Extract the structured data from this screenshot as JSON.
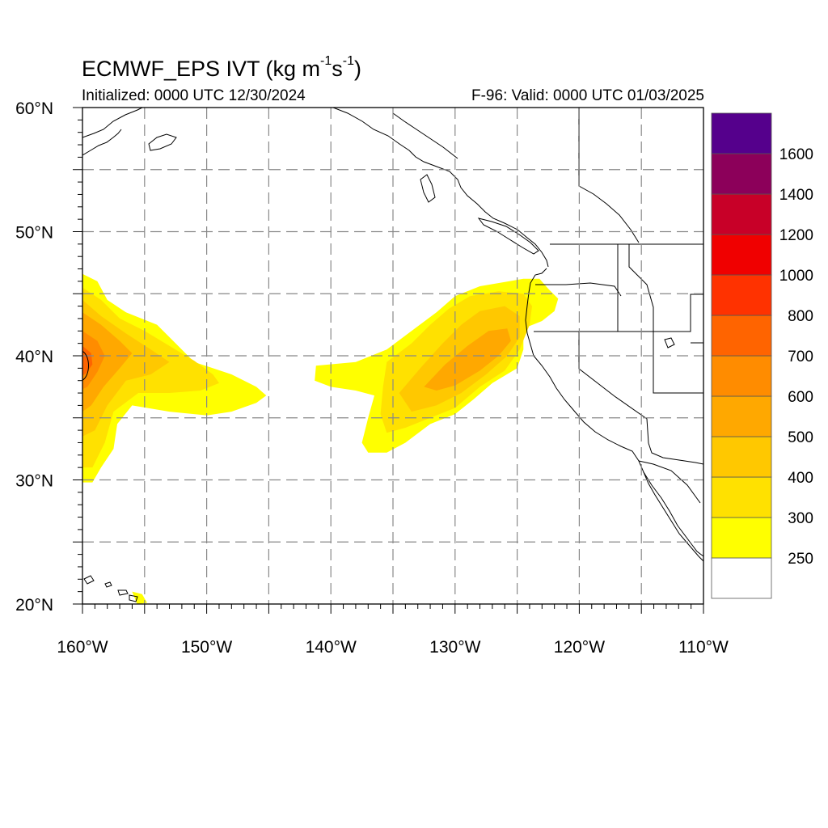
{
  "title": {
    "main": "ECMWF_EPS IVT (kg m",
    "sup1": "-1",
    "mid": "s",
    "sup2": "-1",
    "end": ")",
    "initialized": "Initialized: 0000 UTC 12/30/2024",
    "valid": "F-96: Valid: 0000 UTC 01/03/2025"
  },
  "map": {
    "lon_range": [
      -160,
      -110
    ],
    "lat_range": [
      20,
      60
    ],
    "grid_interval_deg": 5,
    "grid_style": "dashed",
    "lon_tick_labels": [
      {
        "lon": -160,
        "label": "160°W"
      },
      {
        "lon": -150,
        "label": "150°W"
      },
      {
        "lon": -140,
        "label": "140°W"
      },
      {
        "lon": -130,
        "label": "130°W"
      },
      {
        "lon": -120,
        "label": "120°W"
      },
      {
        "lon": -110,
        "label": "110°W"
      }
    ],
    "lat_tick_labels": [
      {
        "lat": 60,
        "label": "60°N"
      },
      {
        "lat": 50,
        "label": "50°N"
      },
      {
        "lat": 40,
        "label": "40°N"
      },
      {
        "lat": 30,
        "label": "30°N"
      },
      {
        "lat": 20,
        "label": "20°N"
      }
    ],
    "ivt_features": [
      {
        "name": "western-atmospheric-river",
        "layers": [
          {
            "level": 250,
            "polygon": [
              [
                -160,
                46.6
              ],
              [
                -158.8,
                46
              ],
              [
                -158,
                44.5
              ],
              [
                -156.5,
                43.5
              ],
              [
                -154,
                42.5
              ],
              [
                -152.5,
                41
              ],
              [
                -151,
                39.5
              ],
              [
                -148,
                38.5
              ],
              [
                -146,
                37.5
              ],
              [
                -145.2,
                36.8
              ],
              [
                -146,
                36.2
              ],
              [
                -148,
                35.5
              ],
              [
                -150,
                35.2
              ],
              [
                -153,
                35.5
              ],
              [
                -156,
                36
              ],
              [
                -157.2,
                34.5
              ],
              [
                -157.5,
                32.5
              ],
              [
                -158.5,
                31
              ],
              [
                -159.2,
                29.8
              ],
              [
                -160,
                29.8
              ]
            ]
          },
          {
            "level": 300,
            "polygon": [
              [
                -160,
                45.5
              ],
              [
                -158.5,
                44.5
              ],
              [
                -157,
                43
              ],
              [
                -155,
                42
              ],
              [
                -153,
                40.8
              ],
              [
                -151,
                39.6
              ],
              [
                -149.5,
                38.5
              ],
              [
                -149,
                37.8
              ],
              [
                -150.5,
                37.2
              ],
              [
                -153,
                37
              ],
              [
                -155.5,
                37
              ],
              [
                -157.5,
                35.5
              ],
              [
                -158.2,
                33
              ],
              [
                -159.2,
                31
              ],
              [
                -160,
                31
              ]
            ]
          },
          {
            "level": 400,
            "polygon": [
              [
                -160,
                44.5
              ],
              [
                -158.5,
                43.2
              ],
              [
                -156.5,
                41.8
              ],
              [
                -154.5,
                40.5
              ],
              [
                -153,
                39.5
              ],
              [
                -154.5,
                38.5
              ],
              [
                -156.5,
                38
              ],
              [
                -158,
                36
              ],
              [
                -159,
                34
              ],
              [
                -160,
                33.5
              ]
            ]
          },
          {
            "level": 500,
            "polygon": [
              [
                -160,
                43.5
              ],
              [
                -158.5,
                42.5
              ],
              [
                -157,
                41.2
              ],
              [
                -156,
                40.2
              ],
              [
                -157,
                39
              ],
              [
                -158.3,
                37.5
              ],
              [
                -159.3,
                36
              ],
              [
                -160,
                35.5
              ]
            ]
          },
          {
            "level": 600,
            "polygon": [
              [
                -160,
                42
              ],
              [
                -158.8,
                41.2
              ],
              [
                -158.2,
                40
              ],
              [
                -158.8,
                38.7
              ],
              [
                -159.6,
                37.5
              ],
              [
                -160,
                37.3
              ]
            ]
          },
          {
            "level": 700,
            "polygon": [
              [
                -160,
                40.8
              ],
              [
                -159.3,
                40.2
              ],
              [
                -159.2,
                39.3
              ],
              [
                -159.7,
                38.6
              ],
              [
                -160,
                38.4
              ]
            ]
          }
        ]
      },
      {
        "name": "eastern-atmospheric-river",
        "layers": [
          {
            "level": 250,
            "polygon": [
              [
                -141.2,
                39.2
              ],
              [
                -138,
                39.5
              ],
              [
                -135.5,
                40.5
              ],
              [
                -133.5,
                42
              ],
              [
                -131.5,
                43.5
              ],
              [
                -130,
                44.8
              ],
              [
                -128,
                45.6
              ],
              [
                -124.5,
                46.2
              ],
              [
                -123.2,
                46.2
              ],
              [
                -122.5,
                45.4
              ],
              [
                -121.7,
                44.6
              ],
              [
                -122,
                43.6
              ],
              [
                -123,
                42.8
              ],
              [
                -124.5,
                42.2
              ],
              [
                -124.5,
                40.5
              ],
              [
                -125,
                39
              ],
              [
                -127,
                37.8
              ],
              [
                -128.5,
                36.5
              ],
              [
                -130,
                35.3
              ],
              [
                -132,
                34.5
              ],
              [
                -134,
                33
              ],
              [
                -135.5,
                32.2
              ],
              [
                -137,
                32.2
              ],
              [
                -137.5,
                33
              ],
              [
                -137,
                35
              ],
              [
                -136.5,
                36.8
              ],
              [
                -138,
                37.2
              ],
              [
                -140,
                37.5
              ],
              [
                -141.3,
                38
              ]
            ]
          },
          {
            "level": 300,
            "polygon": [
              [
                -135.5,
                39.5
              ],
              [
                -133.5,
                41
              ],
              [
                -132,
                42.5
              ],
              [
                -130.5,
                43.8
              ],
              [
                -128.8,
                44.8
              ],
              [
                -126.5,
                45.2
              ],
              [
                -124.5,
                45
              ],
              [
                -123.8,
                44
              ],
              [
                -124,
                42.5
              ],
              [
                -124.8,
                40.5
              ],
              [
                -126,
                38.8
              ],
              [
                -128,
                37.5
              ],
              [
                -130,
                35.8
              ],
              [
                -132,
                35
              ],
              [
                -134,
                34.2
              ],
              [
                -135.5,
                33.8
              ],
              [
                -136,
                35.3
              ],
              [
                -135.8,
                37.5
              ]
            ]
          },
          {
            "level": 400,
            "polygon": [
              [
                -134.5,
                37
              ],
              [
                -132.8,
                39
              ],
              [
                -131,
                41
              ],
              [
                -129.5,
                42.5
              ],
              [
                -128,
                43.6
              ],
              [
                -126,
                44
              ],
              [
                -124.8,
                43.2
              ],
              [
                -124.8,
                41.5
              ],
              [
                -125.8,
                40
              ],
              [
                -127.5,
                38.5
              ],
              [
                -129.5,
                37
              ],
              [
                -131.5,
                36
              ],
              [
                -133.5,
                35.5
              ]
            ]
          },
          {
            "level": 500,
            "polygon": [
              [
                -132.5,
                37.5
              ],
              [
                -130.8,
                39.3
              ],
              [
                -129,
                40.8
              ],
              [
                -127.3,
                42
              ],
              [
                -125.8,
                42.2
              ],
              [
                -125.5,
                41.2
              ],
              [
                -126.5,
                40
              ],
              [
                -128,
                38.8
              ],
              [
                -130,
                37.6
              ],
              [
                -131.5,
                37.2
              ]
            ]
          }
        ]
      },
      {
        "name": "hawaii-small-feature",
        "layers": [
          {
            "level": 250,
            "polygon": [
              [
                -156,
                21
              ],
              [
                -155.2,
                20.8
              ],
              [
                -154.8,
                20.1
              ],
              [
                -155.6,
                20
              ]
            ]
          }
        ]
      }
    ],
    "max_contour": {
      "level": 800,
      "center_lat": 39.2,
      "center_lon": -160
    }
  },
  "colorbar": {
    "colors": [
      "#ffffff",
      "#ffff00",
      "#ffe100",
      "#ffc800",
      "#ffa800",
      "#ff8c00",
      "#ff6400",
      "#ff3200",
      "#f00000",
      "#c80028",
      "#8c005a",
      "#55008c"
    ],
    "labels": [
      "250",
      "300",
      "400",
      "500",
      "600",
      "700",
      "800",
      "1000",
      "1200",
      "1400",
      "1600"
    ]
  },
  "colors": {
    "level_250": "#ffff00",
    "level_300": "#ffe100",
    "level_400": "#ffc800",
    "level_500": "#ffa800",
    "level_600": "#ff8c00",
    "level_700": "#ff6400",
    "level_800": "#ff3200"
  }
}
